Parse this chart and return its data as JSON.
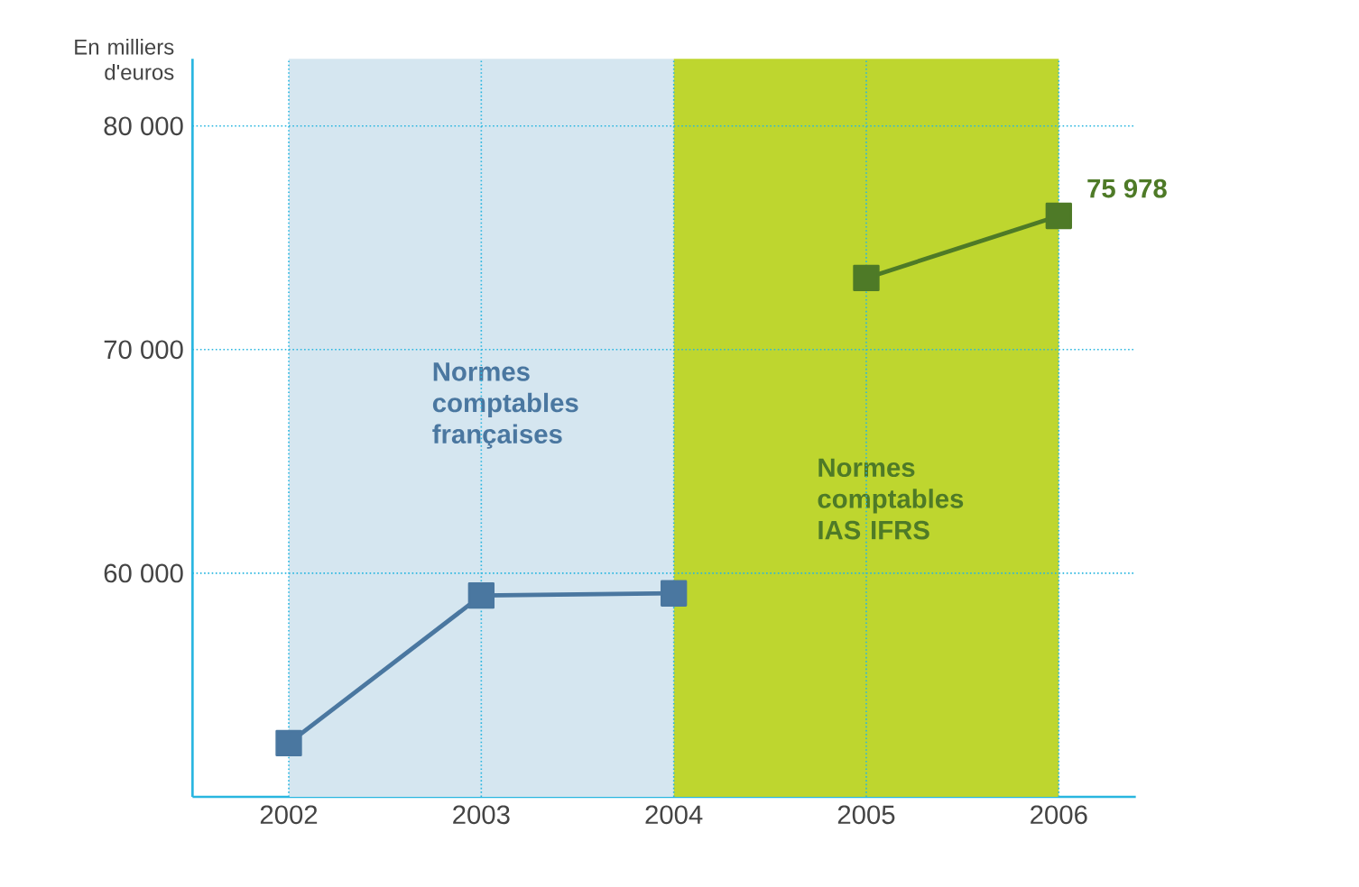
{
  "chart_data": {
    "type": "line",
    "ylabel": "En milliers d'euros",
    "xlim": [
      2001.5,
      2006.4
    ],
    "xticks": [
      2002,
      2003,
      2004,
      2005,
      2006
    ],
    "ylim": [
      50000,
      83000
    ],
    "yticks": [
      {
        "value": 60000,
        "label": "60 000"
      },
      {
        "value": 70000,
        "label": "70 000"
      },
      {
        "value": 80000,
        "label": "80 000"
      }
    ],
    "grid": true,
    "marker": "square",
    "line_style": "solid",
    "series": [
      {
        "color": "#4a77a0",
        "x": [
          2002,
          2003,
          2004
        ],
        "values": [
          52400,
          59000,
          59100
        ]
      },
      {
        "color": "#4e7a27",
        "x": [
          2005,
          2006
        ],
        "values": [
          73200,
          75978
        ],
        "value_labels": [
          null,
          "75 978"
        ]
      }
    ],
    "bands": [
      {
        "axis": "x",
        "from": 2002,
        "to": 2004,
        "label": "Normes comptables françaises",
        "color": "#d5e6f0"
      },
      {
        "axis": "x",
        "from": 2004,
        "to": 2006,
        "label": "Normes comptables IAS IFRS",
        "color": "#bed62f"
      }
    ]
  }
}
